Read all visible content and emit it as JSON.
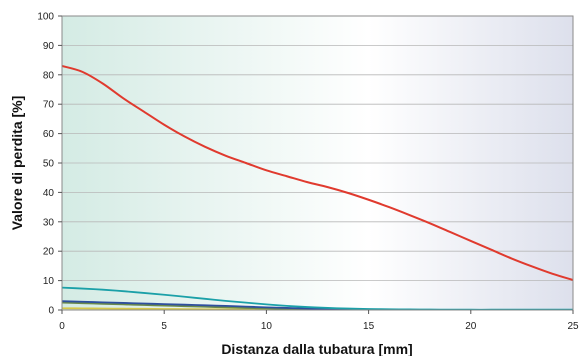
{
  "chart_data": {
    "type": "line",
    "title": "",
    "xlabel": "Distanza dalla tubatura [mm]",
    "ylabel": "Valore di perdita [%]",
    "xlim": [
      0,
      25
    ],
    "ylim": [
      0,
      100
    ],
    "xticks": [
      "0",
      "5",
      "10",
      "15",
      "20",
      "25"
    ],
    "yticks": [
      "0",
      "10",
      "20",
      "30",
      "40",
      "50",
      "60",
      "70",
      "80",
      "90",
      "100"
    ],
    "grid": true,
    "legend": "none",
    "background_gradient": [
      "#d4ebe4",
      "#ffffff",
      "#dde0ec"
    ],
    "series": [
      {
        "color": "#e03a2e",
        "x": [
          0,
          1,
          2,
          3,
          4,
          5,
          6,
          7,
          8,
          9,
          10,
          11,
          12,
          13,
          14,
          15,
          16,
          17,
          18,
          19,
          20,
          21,
          22,
          23,
          24,
          25
        ],
        "y": [
          83,
          81,
          77,
          72,
          67.5,
          63,
          59,
          55.5,
          52.5,
          50,
          47.5,
          45.5,
          43.5,
          41.8,
          39.8,
          37.5,
          35,
          32.3,
          29.5,
          26.5,
          23.5,
          20.5,
          17.5,
          14.8,
          12.3,
          10.2
        ]
      },
      {
        "color": "#1ba0a8",
        "x": [
          0,
          1,
          2,
          3,
          4,
          5,
          6,
          7,
          8,
          9,
          10,
          11,
          12,
          13,
          14,
          15,
          16,
          17,
          18,
          19,
          20,
          21,
          22,
          23,
          24,
          25
        ],
        "y": [
          7.6,
          7.3,
          6.9,
          6.4,
          5.8,
          5.2,
          4.5,
          3.8,
          3.1,
          2.5,
          1.9,
          1.4,
          1.0,
          0.7,
          0.5,
          0.35,
          0.25,
          0.2,
          0.15,
          0.12,
          0.1,
          0.1,
          0.1,
          0.1,
          0.1,
          0.1
        ]
      },
      {
        "color": "#2e4f9e",
        "x": [
          0,
          1,
          2,
          3,
          4,
          5,
          6,
          7,
          8,
          9,
          10,
          11,
          12,
          13,
          14,
          15,
          16,
          17,
          18,
          19,
          20,
          21,
          22,
          23,
          24,
          25
        ],
        "y": [
          3.0,
          2.8,
          2.6,
          2.4,
          2.2,
          2.0,
          1.8,
          1.6,
          1.4,
          1.15,
          0.9,
          0.7,
          0.5,
          0.35,
          0.25,
          0.15,
          0.1,
          0.05,
          0.02,
          0,
          0,
          0,
          0,
          0,
          0,
          0
        ]
      },
      {
        "color": "#6a8a4a",
        "x": [
          0,
          1,
          2,
          3,
          4,
          5,
          6,
          7,
          8,
          9,
          10,
          11,
          12,
          13,
          14,
          15,
          16,
          17,
          18,
          19,
          20,
          21,
          22,
          23,
          24,
          25
        ],
        "y": [
          2.5,
          2.3,
          2.1,
          1.9,
          1.7,
          1.5,
          1.3,
          1.1,
          0.9,
          0.7,
          0.55,
          0.4,
          0.3,
          0.2,
          0.12,
          0.08,
          0.04,
          0.02,
          0,
          0,
          0,
          0,
          0,
          0,
          0,
          0
        ]
      },
      {
        "color": "#d6c84a",
        "x": [
          0,
          1,
          2,
          3,
          4,
          5,
          6,
          7,
          8,
          9,
          10,
          11,
          12,
          13,
          14,
          15,
          16,
          17,
          18,
          19,
          20,
          21,
          22,
          23,
          24,
          25
        ],
        "y": [
          0.6,
          0.55,
          0.5,
          0.45,
          0.4,
          0.35,
          0.3,
          0.25,
          0.2,
          0.15,
          0.1,
          0.08,
          0.05,
          0.03,
          0.02,
          0,
          0,
          0,
          0,
          0,
          0,
          0,
          0,
          0,
          0,
          0
        ]
      }
    ]
  }
}
